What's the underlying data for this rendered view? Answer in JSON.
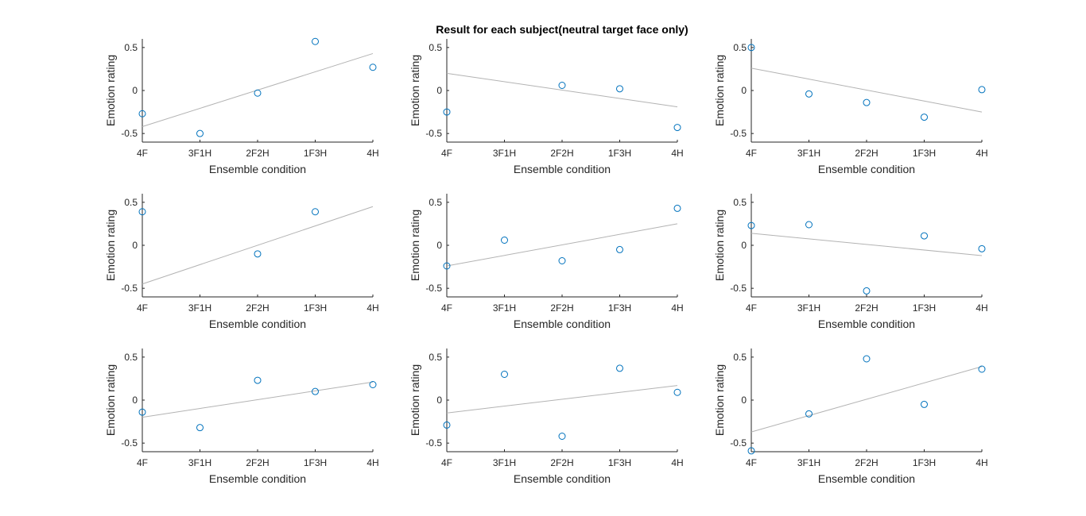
{
  "figure_title": "Result for each subject(neutral target face only)",
  "chart_data": [
    {
      "type": "scatter",
      "xlabel": "Ensemble condition",
      "ylabel": "Emotion rating",
      "categories": [
        "4F",
        "3F1H",
        "2F2H",
        "1F3H",
        "4H"
      ],
      "yticks": [
        -0.5,
        0,
        0.5
      ],
      "ylim": [
        -0.6,
        0.6
      ],
      "values": [
        -0.27,
        -0.5,
        -0.03,
        0.57,
        0.27
      ],
      "fit_line": [
        -0.42,
        0.43
      ]
    },
    {
      "type": "scatter",
      "xlabel": "Ensemble condition",
      "ylabel": "Emotion rating",
      "categories": [
        "4F",
        "3F1H",
        "2F2H",
        "1F3H",
        "4H"
      ],
      "yticks": [
        -0.5,
        0,
        0.5
      ],
      "ylim": [
        -0.6,
        0.6
      ],
      "values": [
        -0.25,
        null,
        0.06,
        0.02,
        -0.43
      ],
      "fit_line": [
        0.2,
        -0.19
      ]
    },
    {
      "type": "scatter",
      "xlabel": "Ensemble condition",
      "ylabel": "Emotion rating",
      "categories": [
        "4F",
        "3F1H",
        "2F2H",
        "1F3H",
        "4H"
      ],
      "yticks": [
        -0.5,
        0,
        0.5
      ],
      "ylim": [
        -0.6,
        0.6
      ],
      "values": [
        0.5,
        -0.04,
        -0.14,
        -0.31,
        0.01
      ],
      "fit_line": [
        0.26,
        -0.25
      ]
    },
    {
      "type": "scatter",
      "xlabel": "Ensemble condition",
      "ylabel": "Emotion rating",
      "categories": [
        "4F",
        "3F1H",
        "2F2H",
        "1F3H",
        "4H"
      ],
      "yticks": [
        -0.5,
        0,
        0.5
      ],
      "ylim": [
        -0.6,
        0.6
      ],
      "values": [
        0.39,
        null,
        -0.1,
        0.39,
        null
      ],
      "fit_line": [
        -0.45,
        0.45
      ]
    },
    {
      "type": "scatter",
      "xlabel": "Ensemble condition",
      "ylabel": "Emotion rating",
      "categories": [
        "4F",
        "3F1H",
        "2F2H",
        "1F3H",
        "4H"
      ],
      "yticks": [
        -0.5,
        0,
        0.5
      ],
      "ylim": [
        -0.6,
        0.6
      ],
      "values": [
        -0.24,
        0.06,
        -0.18,
        -0.05,
        0.43
      ],
      "fit_line": [
        -0.24,
        0.25
      ]
    },
    {
      "type": "scatter",
      "xlabel": "Ensemble condition",
      "ylabel": "Emotion rating",
      "categories": [
        "4F",
        "3F1H",
        "2F2H",
        "1F3H",
        "4H"
      ],
      "yticks": [
        -0.5,
        0,
        0.5
      ],
      "ylim": [
        -0.6,
        0.6
      ],
      "values": [
        0.23,
        0.24,
        -0.53,
        0.11,
        -0.04
      ],
      "fit_line": [
        0.14,
        -0.12
      ]
    },
    {
      "type": "scatter",
      "xlabel": "Ensemble condition",
      "ylabel": "Emotion rating",
      "categories": [
        "4F",
        "3F1H",
        "2F2H",
        "1F3H",
        "4H"
      ],
      "yticks": [
        -0.5,
        0,
        0.5
      ],
      "ylim": [
        -0.6,
        0.6
      ],
      "values": [
        -0.14,
        -0.32,
        0.23,
        0.1,
        0.18
      ],
      "fit_line": [
        -0.2,
        0.21
      ]
    },
    {
      "type": "scatter",
      "xlabel": "Ensemble condition",
      "ylabel": "Emotion rating",
      "categories": [
        "4F",
        "3F1H",
        "2F2H",
        "1F3H",
        "4H"
      ],
      "yticks": [
        -0.5,
        0,
        0.5
      ],
      "ylim": [
        -0.6,
        0.6
      ],
      "values": [
        -0.29,
        0.3,
        -0.42,
        0.37,
        0.09
      ],
      "fit_line": [
        -0.15,
        0.17
      ]
    },
    {
      "type": "scatter",
      "xlabel": "Ensemble condition",
      "ylabel": "Emotion rating",
      "categories": [
        "4F",
        "3F1H",
        "2F2H",
        "1F3H",
        "4H"
      ],
      "yticks": [
        -0.5,
        0,
        0.5
      ],
      "ylim": [
        -0.6,
        0.6
      ],
      "values": [
        -0.59,
        -0.16,
        0.48,
        -0.05,
        0.36
      ],
      "fit_line": [
        -0.37,
        0.39
      ]
    }
  ],
  "colors": {
    "marker": "#0072bd",
    "fit_line": "#b3b3b3",
    "axis": "#262626"
  }
}
